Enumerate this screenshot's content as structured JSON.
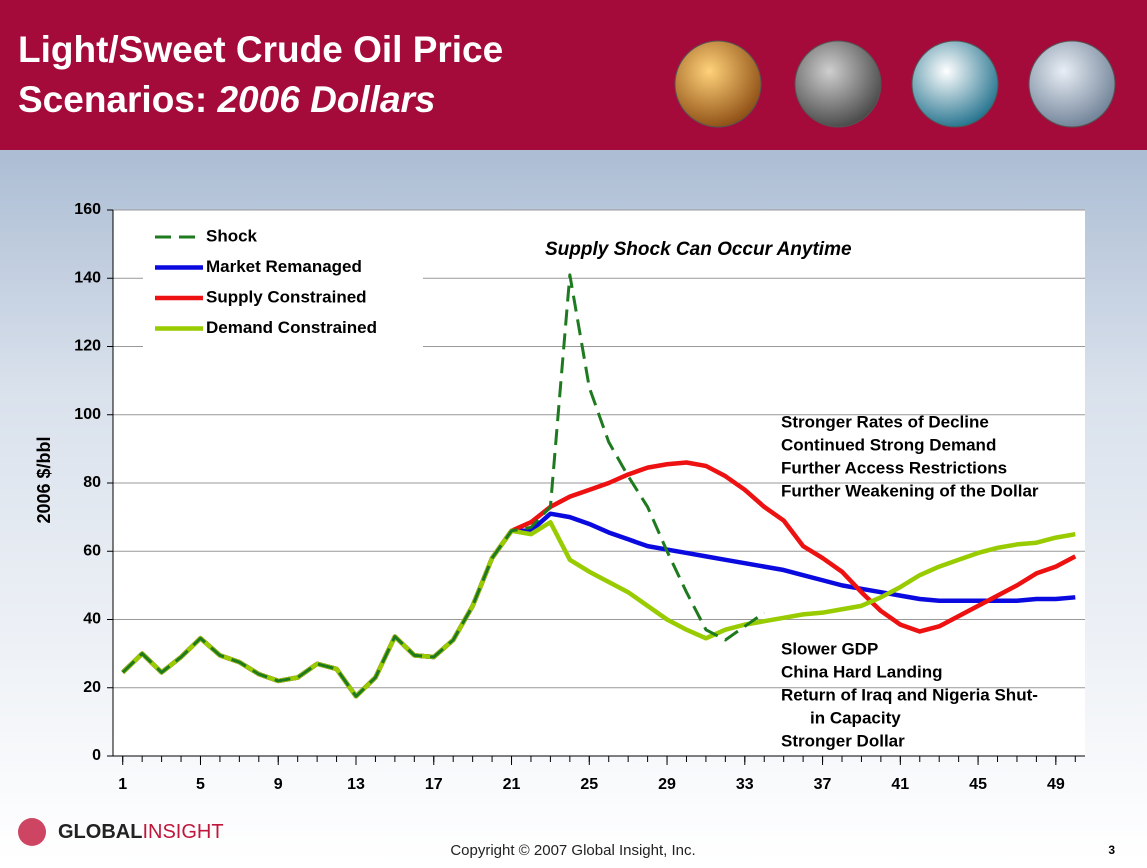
{
  "slide": {
    "title": [
      "Light/Sweet Crude Oil Price",
      "Scenarios: ",
      "2006 Dollars"
    ],
    "logo": [
      "GLOBAL",
      "INSIGHT"
    ],
    "copyright": "Copyright © 2007 Global Insight, Inc.",
    "page": "3"
  },
  "chart_data": {
    "type": "line",
    "ylabel": "2006 $/bbl",
    "annotation": "Supply Shock Can Occur Anytime",
    "upper_notes": [
      "Stronger Rates of Decline",
      "Continued Strong Demand",
      "Further Access Restrictions",
      "Further Weakening of the Dollar"
    ],
    "lower_notes": [
      "Slower GDP",
      "China Hard Landing",
      "Return of Iraq and Nigeria Shut-",
      "in Capacity",
      "Stronger Dollar"
    ],
    "x": [
      1,
      2,
      3,
      4,
      5,
      6,
      7,
      8,
      9,
      10,
      11,
      12,
      13,
      14,
      15,
      16,
      17,
      18,
      19,
      20,
      21,
      22,
      23,
      24,
      25,
      26,
      27,
      28,
      29,
      30,
      31,
      32,
      33,
      34,
      35,
      36,
      37,
      38,
      39,
      40,
      41,
      42,
      43,
      44,
      45,
      46,
      47,
      48,
      49,
      50
    ],
    "xlim": [
      0.5,
      50.5
    ],
    "xticks": [
      1,
      5,
      9,
      13,
      17,
      21,
      25,
      29,
      33,
      37,
      41,
      45,
      49
    ],
    "ylim": [
      0,
      160
    ],
    "yticks": [
      0,
      20,
      40,
      60,
      80,
      100,
      120,
      140,
      160
    ],
    "grid": true,
    "legend": "upper left",
    "series": [
      {
        "name": "Market Remanaged",
        "color": "#0a0ae0",
        "dashed": false,
        "values": [
          24.5,
          30,
          24.5,
          29,
          34.5,
          29.5,
          27.5,
          24,
          22,
          23,
          27,
          25.5,
          17.5,
          23,
          35,
          29.5,
          29,
          34,
          44,
          58,
          66,
          66,
          71,
          70,
          68,
          65.5,
          63.5,
          61.5,
          60.5,
          59.5,
          58.5,
          57.5,
          56.5,
          55.5,
          54.5,
          53,
          51.5,
          50,
          49,
          48,
          47,
          46,
          45.5,
          45.5,
          45.5,
          45.5,
          45.5,
          46,
          46,
          46.5
        ]
      },
      {
        "name": "Supply Constrained",
        "color": "#ee1111",
        "dashed": false,
        "values": [
          24.5,
          30,
          24.5,
          29,
          34.5,
          29.5,
          27.5,
          24,
          22,
          23,
          27,
          25.5,
          17.5,
          23,
          35,
          29.5,
          29,
          34,
          44,
          58,
          66,
          68.5,
          73,
          76,
          78,
          80,
          82.5,
          84.5,
          85.5,
          86,
          85,
          82,
          78,
          73,
          69,
          61.5,
          58,
          54,
          48,
          42.5,
          38.5,
          36.5,
          38,
          41,
          44,
          47,
          50,
          53.5,
          55.5,
          58.5
        ]
      },
      {
        "name": "Demand Constrained",
        "color": "#99cc00",
        "dashed": false,
        "values": [
          24.5,
          30,
          24.5,
          29,
          34.5,
          29.5,
          27.5,
          24,
          22,
          23,
          27,
          25.5,
          17.5,
          23,
          35,
          29.5,
          29,
          34,
          44,
          58,
          66,
          65,
          68.5,
          57.5,
          54,
          51,
          48,
          44,
          40,
          37,
          34.5,
          37,
          38.5,
          39.5,
          40.5,
          41.5,
          42,
          43,
          44,
          46.5,
          49.5,
          53,
          55.5,
          57.5,
          59.5,
          61,
          62,
          62.5,
          64,
          65
        ]
      },
      {
        "name": "Shock",
        "color": "#1e7a1e",
        "dashed": true,
        "values": [
          24.5,
          30,
          24.5,
          29,
          34.5,
          29.5,
          27.5,
          24,
          22,
          23,
          27,
          25.5,
          17.5,
          23,
          35,
          29.5,
          29,
          34,
          44,
          58,
          66,
          67,
          73,
          141,
          108,
          92,
          82,
          73,
          60,
          48,
          37,
          34,
          38,
          42,
          null,
          null,
          null,
          null,
          null,
          null,
          null,
          null,
          null,
          null,
          null,
          null,
          null,
          null,
          null,
          null
        ]
      }
    ]
  }
}
